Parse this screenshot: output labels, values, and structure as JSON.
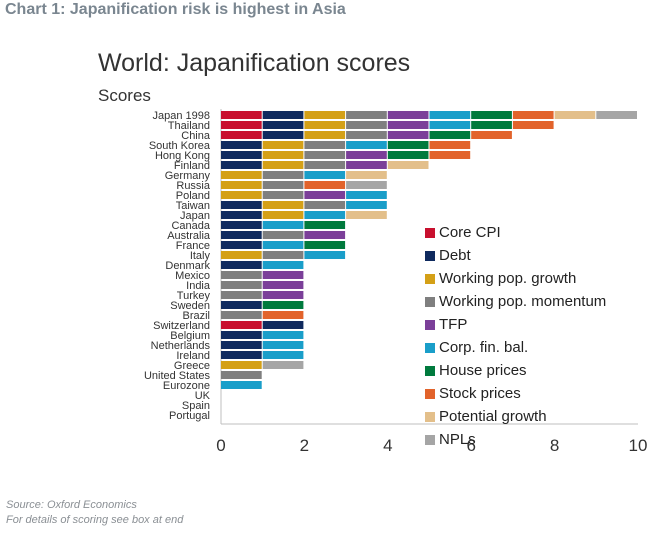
{
  "header": {
    "title": "Chart 1: Japanification risk is highest in Asia"
  },
  "chart_data": {
    "type": "bar",
    "orientation": "horizontal",
    "stacked": true,
    "title": "World: Japanification scores",
    "subtitle": "Scores",
    "xlim": [
      0,
      10
    ],
    "xticks": [
      "0",
      "2",
      "4",
      "6",
      "8",
      "10"
    ],
    "grid": false,
    "legend_position": "right",
    "series": [
      {
        "name": "Core CPI",
        "color": "#c8102e"
      },
      {
        "name": "Debt",
        "color": "#0f2a5e"
      },
      {
        "name": "Working pop. growth",
        "color": "#d4a017"
      },
      {
        "name": "Working pop. momentum",
        "color": "#7f7f7f"
      },
      {
        "name": "TFP",
        "color": "#7b3f99"
      },
      {
        "name": "Corp. fin. bal.",
        "color": "#1a9ec9"
      },
      {
        "name": "House prices",
        "color": "#007a3d"
      },
      {
        "name": "Stock prices",
        "color": "#e2632b"
      },
      {
        "name": "Potential growth",
        "color": "#e3bf8a"
      },
      {
        "name": "NPLs",
        "color": "#a5a5a5"
      }
    ],
    "categories": [
      "Japan 1998",
      "Thailand",
      "China",
      "South Korea",
      "Hong Kong",
      "Finland",
      "Germany",
      "Russia",
      "Poland",
      "Taiwan",
      "Japan",
      "Canada",
      "Australia",
      "France",
      "Italy",
      "Denmark",
      "Mexico",
      "India",
      "Turkey",
      "Sweden",
      "Brazil",
      "Switzerland",
      "Belgium",
      "Netherlands",
      "Ireland",
      "Greece",
      "United States",
      "Eurozone",
      "UK",
      "Spain",
      "Portugal"
    ],
    "bars": [
      [
        "Core CPI",
        "Debt",
        "Working pop. growth",
        "Working pop. momentum",
        "TFP",
        "Corp. fin. bal.",
        "House prices",
        "Stock prices",
        "Potential growth",
        "NPLs"
      ],
      [
        "Core CPI",
        "Debt",
        "Working pop. growth",
        "Working pop. momentum",
        "TFP",
        "Corp. fin. bal.",
        "House prices",
        "Stock prices"
      ],
      [
        "Core CPI",
        "Debt",
        "Working pop. growth",
        "Working pop. momentum",
        "TFP",
        "House prices",
        "Stock prices"
      ],
      [
        "Debt",
        "Working pop. growth",
        "Working pop. momentum",
        "Corp. fin. bal.",
        "House prices",
        "Stock prices"
      ],
      [
        "Debt",
        "Working pop. growth",
        "Working pop. momentum",
        "TFP",
        "House prices",
        "Stock prices"
      ],
      [
        "Debt",
        "Working pop. growth",
        "Working pop. momentum",
        "TFP",
        "Potential growth"
      ],
      [
        "Working pop. growth",
        "Working pop. momentum",
        "Corp. fin. bal.",
        "Potential growth"
      ],
      [
        "Working pop. growth",
        "Working pop. momentum",
        "Stock prices",
        "NPLs"
      ],
      [
        "Working pop. growth",
        "Working pop. momentum",
        "TFP",
        "Corp. fin. bal."
      ],
      [
        "Debt",
        "Working pop. growth",
        "Working pop. momentum",
        "Corp. fin. bal."
      ],
      [
        "Debt",
        "Working pop. growth",
        "Corp. fin. bal.",
        "Potential growth"
      ],
      [
        "Debt",
        "Corp. fin. bal.",
        "House prices"
      ],
      [
        "Debt",
        "Working pop. momentum",
        "TFP"
      ],
      [
        "Debt",
        "Corp. fin. bal.",
        "House prices"
      ],
      [
        "Working pop. growth",
        "Working pop. momentum",
        "Corp. fin. bal."
      ],
      [
        "Debt",
        "Corp. fin. bal."
      ],
      [
        "Working pop. momentum",
        "TFP"
      ],
      [
        "Working pop. momentum",
        "TFP"
      ],
      [
        "Working pop. momentum",
        "TFP"
      ],
      [
        "Debt",
        "House prices"
      ],
      [
        "Working pop. momentum",
        "Stock prices"
      ],
      [
        "Core CPI",
        "Debt"
      ],
      [
        "Debt",
        "Corp. fin. bal."
      ],
      [
        "Debt",
        "Corp. fin. bal."
      ],
      [
        "Debt",
        "Corp. fin. bal."
      ],
      [
        "Working pop. growth",
        "NPLs"
      ],
      [
        "Working pop. momentum"
      ],
      [
        "Corp. fin. bal."
      ],
      [],
      [],
      []
    ]
  },
  "footer": {
    "source": "Source: Oxford Economics",
    "note": "For details of scoring see box at end"
  }
}
